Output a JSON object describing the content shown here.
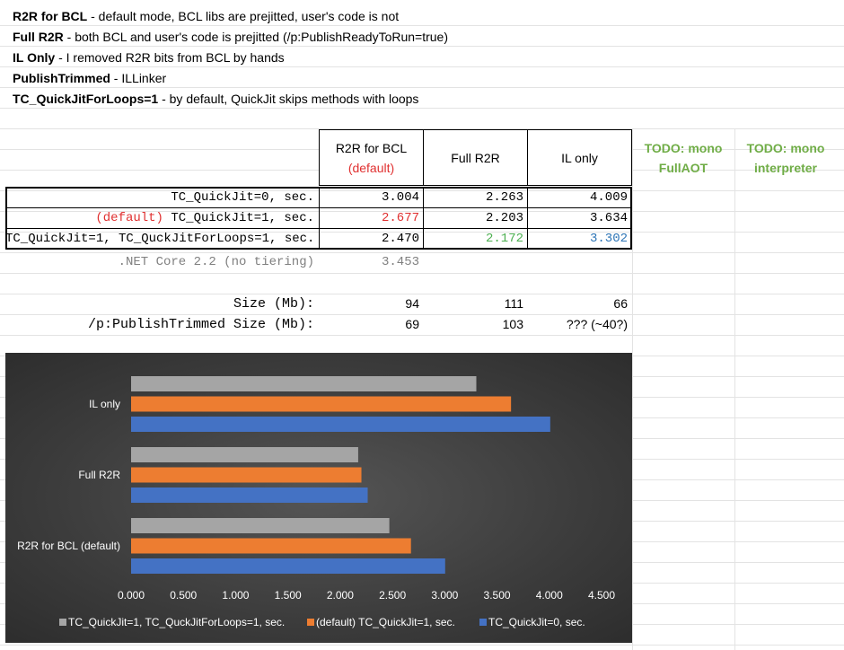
{
  "notes": [
    {
      "term": "R2R for BCL",
      "desc": " - default mode, BCL libs are prejitted, user's code is not"
    },
    {
      "term": "Full R2R",
      "desc": " - both BCL and user's code is prejitted (/p:PublishReadyToRun=true)"
    },
    {
      "term": "IL Only",
      "desc": " - I removed R2R bits from BCL by hands"
    },
    {
      "term": "PublishTrimmed",
      "desc": " - ILLinker"
    },
    {
      "term": "TC_QuickJitForLoops=1",
      "desc": " - by default, QuickJit skips methods with loops"
    }
  ],
  "table": {
    "headers": [
      {
        "line1": "R2R for BCL",
        "line2": "(default)"
      },
      {
        "line1": "Full R2R",
        "line2": ""
      },
      {
        "line1": "IL only",
        "line2": ""
      }
    ],
    "todo": [
      {
        "line1": "TODO: mono",
        "line2": "FullAOT"
      },
      {
        "line1": "TODO: mono",
        "line2": "interpreter"
      }
    ],
    "rows": [
      {
        "prefix": "",
        "label": "TC_QuickJit=0, sec.",
        "values": [
          "3.004",
          "2.263",
          "4.009"
        ]
      },
      {
        "prefix": "(default)",
        "label": " TC_QuickJit=1, sec.",
        "values": [
          "2.677",
          "2.203",
          "3.634"
        ]
      },
      {
        "prefix": "",
        "label": "TC_QuickJit=1, TC_QuckJitForLoops=1, sec.",
        "values": [
          "2.470",
          "2.172",
          "3.302"
        ]
      }
    ],
    "netcore": {
      "label": ".NET Core 2.2 (no tiering)",
      "value": "3.453"
    },
    "size": {
      "label": "Size (Mb):",
      "values": [
        "94",
        "111",
        "66"
      ]
    },
    "trimmed": {
      "label": "/p:PublishTrimmed Size (Mb):",
      "values": [
        "69",
        "103",
        "??? (~40?)"
      ]
    },
    "colors": {
      "red": "#e03030",
      "green": "#4caf50",
      "blue": "#2e75b6",
      "gray": "#808080"
    }
  },
  "chart_data": {
    "type": "bar",
    "orientation": "horizontal",
    "categories": [
      "R2R for BCL (default)",
      "Full R2R",
      "IL only"
    ],
    "series": [
      {
        "name": "TC_QuickJit=1, TC_QuckJitForLoops=1, sec.",
        "color": "#a5a5a5",
        "values": [
          2.47,
          2.172,
          3.302
        ]
      },
      {
        "name": "(default) TC_QuickJit=1, sec.",
        "color": "#ed7d31",
        "values": [
          2.677,
          2.203,
          3.634
        ]
      },
      {
        "name": "TC_QuickJit=0, sec.",
        "color": "#4472c4",
        "values": [
          3.004,
          2.263,
          4.009
        ]
      }
    ],
    "xticks": [
      "0.000",
      "0.500",
      "1.000",
      "1.500",
      "2.000",
      "2.500",
      "3.000",
      "3.500",
      "4.000",
      "4.500"
    ],
    "xlim": [
      0,
      4.5
    ],
    "legend": "bottom",
    "grid": false
  }
}
